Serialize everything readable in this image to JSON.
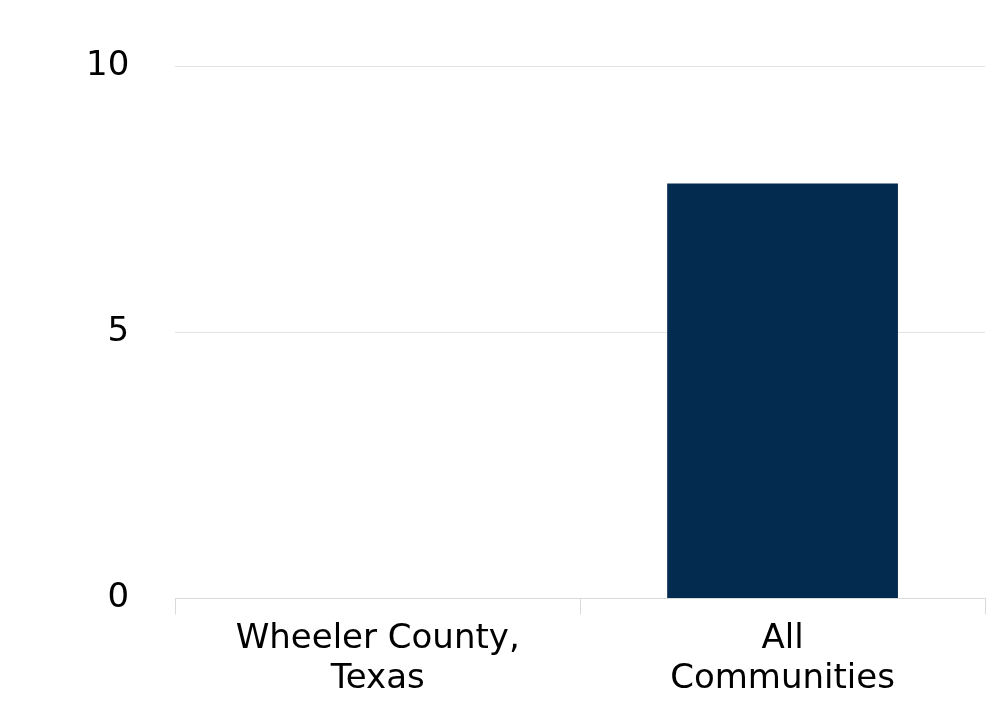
{
  "chart_data": {
    "type": "bar",
    "categories": [
      "Wheeler County, Texas",
      "All Communities"
    ],
    "values": [
      0,
      7.8
    ],
    "color": "#032b4f",
    "ylim": [
      0,
      10
    ],
    "yticks": [
      0,
      5,
      10
    ],
    "grid": "y"
  }
}
